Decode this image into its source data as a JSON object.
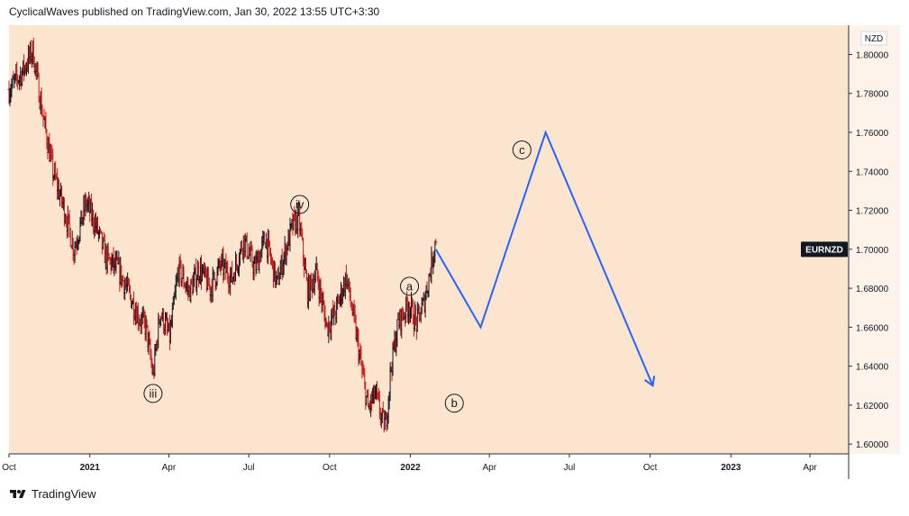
{
  "header": {
    "text": "CyclicalWaves published on TradingView.com, Jan 30, 2022 13:55 UTC+3:30"
  },
  "footer": {
    "brand": "TradingView"
  },
  "colors": {
    "background": "#fbe5cf",
    "price_axis_bg": "#fdf3ea",
    "bar_up": "#131722",
    "bar_down": "#d01818",
    "projection": "#2962ff"
  },
  "chart_data": {
    "type": "line",
    "symbol_label": "EURNZD",
    "currency_label": "NZD",
    "x_tick_labels": [
      "Oct",
      "2021",
      "Apr",
      "Jul",
      "Oct",
      "2022",
      "Apr",
      "Jul",
      "Oct",
      "2023",
      "Apr"
    ],
    "x_tick_dates": [
      "2020-10-01",
      "2021-01-01",
      "2021-04-01",
      "2021-07-01",
      "2021-10-01",
      "2022-01-01",
      "2022-04-01",
      "2022-07-01",
      "2022-10-01",
      "2023-01-01",
      "2023-04-01"
    ],
    "y_ticks": [
      "1.60000",
      "1.62000",
      "1.64000",
      "1.66000",
      "1.68000",
      "1.70000",
      "1.72000",
      "1.74000",
      "1.76000",
      "1.78000",
      "1.80000"
    ],
    "ylim": [
      1.595,
      1.815
    ],
    "xlim": [
      "2020-10-01",
      "2023-05-15"
    ],
    "last_price": 1.7,
    "price_series": {
      "name": "EURNZD",
      "points": [
        [
          "2020-10-01",
          1.782
        ],
        [
          "2020-10-15",
          1.79
        ],
        [
          "2020-10-28",
          1.802
        ],
        [
          "2020-11-08",
          1.77
        ],
        [
          "2020-11-20",
          1.74
        ],
        [
          "2020-12-02",
          1.722
        ],
        [
          "2020-12-14",
          1.7
        ],
        [
          "2020-12-28",
          1.724
        ],
        [
          "2021-01-08",
          1.712
        ],
        [
          "2021-01-20",
          1.695
        ],
        [
          "2021-02-02",
          1.69
        ],
        [
          "2021-02-14",
          1.678
        ],
        [
          "2021-02-26",
          1.665
        ],
        [
          "2021-03-06",
          1.66
        ],
        [
          "2021-03-14",
          1.635
        ],
        [
          "2021-03-22",
          1.668
        ],
        [
          "2021-04-02",
          1.655
        ],
        [
          "2021-04-12",
          1.69
        ],
        [
          "2021-04-24",
          1.678
        ],
        [
          "2021-05-06",
          1.69
        ],
        [
          "2021-05-18",
          1.68
        ],
        [
          "2021-05-30",
          1.692
        ],
        [
          "2021-06-12",
          1.685
        ],
        [
          "2021-06-25",
          1.705
        ],
        [
          "2021-07-08",
          1.69
        ],
        [
          "2021-07-20",
          1.706
        ],
        [
          "2021-08-02",
          1.682
        ],
        [
          "2021-08-12",
          1.7
        ],
        [
          "2021-08-20",
          1.712
        ],
        [
          "2021-08-27",
          1.716
        ],
        [
          "2021-09-06",
          1.678
        ],
        [
          "2021-09-16",
          1.688
        ],
        [
          "2021-09-28",
          1.66
        ],
        [
          "2021-10-08",
          1.668
        ],
        [
          "2021-10-20",
          1.686
        ],
        [
          "2021-10-30",
          1.66
        ],
        [
          "2021-11-06",
          1.64
        ],
        [
          "2021-11-14",
          1.618
        ],
        [
          "2021-11-22",
          1.626
        ],
        [
          "2021-11-30",
          1.612
        ],
        [
          "2021-12-04",
          1.61
        ],
        [
          "2021-12-10",
          1.64
        ],
        [
          "2021-12-18",
          1.662
        ],
        [
          "2021-12-30",
          1.672
        ],
        [
          "2022-01-08",
          1.662
        ],
        [
          "2022-01-16",
          1.672
        ],
        [
          "2022-01-24",
          1.69
        ],
        [
          "2022-01-30",
          1.706
        ]
      ]
    },
    "projection": {
      "points": [
        [
          "2022-01-30",
          1.7
        ],
        [
          "2022-03-22",
          1.66
        ],
        [
          "2022-06-04",
          1.76
        ],
        [
          "2022-10-04",
          1.63
        ]
      ],
      "arrow": true
    },
    "wave_labels": [
      {
        "label": "iii",
        "date": "2021-03-14",
        "price": 1.626
      },
      {
        "label": "iv",
        "date": "2021-08-28",
        "price": 1.723
      },
      {
        "label": "a",
        "date": "2021-12-31",
        "price": 1.681
      },
      {
        "label": "b",
        "date": "2022-02-20",
        "price": 1.621
      },
      {
        "label": "c",
        "date": "2022-05-08",
        "price": 1.751
      }
    ]
  }
}
